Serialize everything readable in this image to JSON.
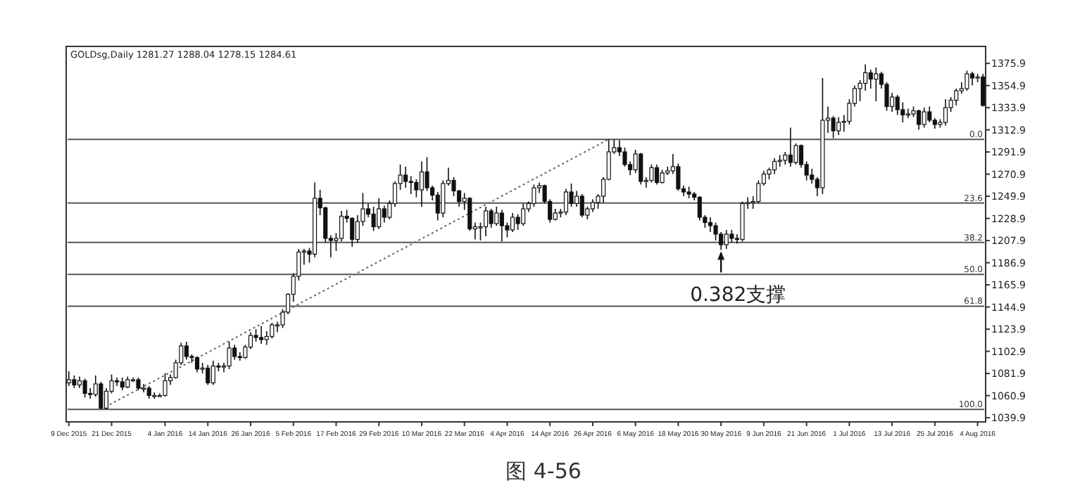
{
  "chart_data": {
    "type": "candlestick",
    "title": "GOLDsg,Daily  1281.27 1288.04 1278.15 1284.61",
    "categories": [
      "9 Dec 2015",
      null,
      null,
      null,
      null,
      null,
      null,
      null,
      "21 Dec 2015",
      null,
      null,
      null,
      null,
      null,
      null,
      null,
      null,
      null,
      "4 Jan 2016",
      null,
      null,
      null,
      null,
      null,
      null,
      null,
      "14 Jan 2016",
      null,
      null,
      null,
      null,
      null,
      null,
      null,
      "26 Jan 2016",
      null,
      null,
      null,
      null,
      null,
      null,
      null,
      "5 Feb 2016",
      null,
      null,
      null,
      null,
      null,
      null,
      null,
      "17 Feb 2016",
      null,
      null,
      null,
      null,
      null,
      null,
      null,
      "29 Feb 2016",
      null,
      null,
      null,
      null,
      null,
      null,
      null,
      "10 Mar 2016",
      null,
      null,
      null,
      null,
      null,
      null,
      null,
      "22 Mar 2016",
      null,
      null,
      null,
      null,
      null,
      null,
      null,
      "4 Apr 2016",
      null,
      null,
      null,
      null,
      null,
      null,
      null,
      "14 Apr 2016",
      null,
      null,
      null,
      null,
      null,
      null,
      null,
      "26 Apr 2016",
      null,
      null,
      null,
      null,
      null,
      null,
      null,
      "6 May 2016",
      null,
      null,
      null,
      null,
      null,
      null,
      null,
      "18 May 2016",
      null,
      null,
      null,
      null,
      null,
      null,
      null,
      "30 May 2016",
      null,
      null,
      null,
      null,
      null,
      null,
      null,
      "9 Jun 2016",
      null,
      null,
      null,
      null,
      null,
      null,
      null,
      "21 Jun 2016",
      null,
      null,
      null,
      null,
      null,
      null,
      null,
      "1 Jul 2016",
      null,
      null,
      null,
      null,
      null,
      null,
      null,
      "13 Jul 2016",
      null,
      null,
      null,
      null,
      null,
      null,
      null,
      "25 Jul 2016",
      null,
      null,
      null,
      null,
      null,
      null,
      null,
      "4 Aug 2016",
      null
    ],
    "ohlc": [
      [
        1073,
        1084,
        1070,
        1076
      ],
      [
        1076,
        1080,
        1068,
        1071
      ],
      [
        1071,
        1079,
        1068,
        1075
      ],
      [
        1075,
        1077,
        1059,
        1063
      ],
      [
        1063,
        1068,
        1058,
        1062
      ],
      [
        1062,
        1080,
        1060,
        1072
      ],
      [
        1072,
        1074,
        1048,
        1049
      ],
      [
        1049,
        1068,
        1048,
        1065
      ],
      [
        1065,
        1081,
        1063,
        1075
      ],
      [
        1075,
        1078,
        1070,
        1074
      ],
      [
        1074,
        1078,
        1066,
        1069
      ],
      [
        1069,
        1079,
        1068,
        1076
      ],
      [
        1076,
        1078,
        1074,
        1076
      ],
      [
        1076,
        1078,
        1066,
        1068
      ],
      [
        1068,
        1072,
        1064,
        1068
      ],
      [
        1068,
        1070,
        1058,
        1061
      ],
      [
        1061,
        1064,
        1058,
        1061
      ],
      [
        1061,
        1063,
        1060,
        1061
      ],
      [
        1061,
        1082,
        1060,
        1075
      ],
      [
        1075,
        1081,
        1071,
        1078
      ],
      [
        1078,
        1095,
        1077,
        1092
      ],
      [
        1092,
        1111,
        1090,
        1108
      ],
      [
        1108,
        1112,
        1095,
        1098
      ],
      [
        1098,
        1100,
        1092,
        1097
      ],
      [
        1097,
        1098,
        1083,
        1086
      ],
      [
        1086,
        1092,
        1082,
        1087
      ],
      [
        1087,
        1090,
        1071,
        1073
      ],
      [
        1073,
        1094,
        1071,
        1089
      ],
      [
        1089,
        1092,
        1084,
        1088
      ],
      [
        1088,
        1092,
        1083,
        1089
      ],
      [
        1089,
        1112,
        1086,
        1106
      ],
      [
        1106,
        1109,
        1095,
        1098
      ],
      [
        1098,
        1102,
        1094,
        1097
      ],
      [
        1097,
        1109,
        1096,
        1107
      ],
      [
        1107,
        1121,
        1105,
        1118
      ],
      [
        1118,
        1124,
        1112,
        1116
      ],
      [
        1116,
        1127,
        1110,
        1114
      ],
      [
        1114,
        1122,
        1109,
        1117
      ],
      [
        1117,
        1130,
        1115,
        1128
      ],
      [
        1128,
        1131,
        1121,
        1128
      ],
      [
        1128,
        1143,
        1125,
        1140
      ],
      [
        1140,
        1158,
        1138,
        1157
      ],
      [
        1157,
        1177,
        1150,
        1174
      ],
      [
        1174,
        1200,
        1170,
        1197
      ],
      [
        1197,
        1200,
        1185,
        1198
      ],
      [
        1198,
        1201,
        1187,
        1195
      ],
      [
        1195,
        1263,
        1192,
        1248
      ],
      [
        1248,
        1256,
        1232,
        1239
      ],
      [
        1239,
        1240,
        1206,
        1210
      ],
      [
        1210,
        1213,
        1192,
        1208
      ],
      [
        1208,
        1215,
        1198,
        1210
      ],
      [
        1210,
        1236,
        1207,
        1231
      ],
      [
        1231,
        1237,
        1225,
        1229
      ],
      [
        1229,
        1230,
        1202,
        1209
      ],
      [
        1209,
        1232,
        1206,
        1226
      ],
      [
        1226,
        1253,
        1222,
        1238
      ],
      [
        1238,
        1243,
        1230,
        1233
      ],
      [
        1233,
        1240,
        1217,
        1221
      ],
      [
        1221,
        1248,
        1219,
        1238
      ],
      [
        1238,
        1241,
        1225,
        1230
      ],
      [
        1230,
        1246,
        1228,
        1243
      ],
      [
        1243,
        1264,
        1240,
        1262
      ],
      [
        1262,
        1280,
        1256,
        1270
      ],
      [
        1270,
        1278,
        1258,
        1264
      ],
      [
        1264,
        1269,
        1252,
        1263
      ],
      [
        1263,
        1266,
        1249,
        1256
      ],
      [
        1256,
        1283,
        1240,
        1273
      ],
      [
        1273,
        1287,
        1255,
        1258
      ],
      [
        1258,
        1260,
        1246,
        1251
      ],
      [
        1251,
        1254,
        1227,
        1234
      ],
      [
        1234,
        1265,
        1230,
        1262
      ],
      [
        1262,
        1277,
        1260,
        1265
      ],
      [
        1265,
        1268,
        1250,
        1255
      ],
      [
        1255,
        1256,
        1240,
        1245
      ],
      [
        1245,
        1253,
        1237,
        1248
      ],
      [
        1248,
        1249,
        1217,
        1219
      ],
      [
        1219,
        1225,
        1209,
        1221
      ],
      [
        1221,
        1225,
        1208,
        1221
      ],
      [
        1221,
        1240,
        1212,
        1236
      ],
      [
        1236,
        1238,
        1220,
        1224
      ],
      [
        1224,
        1240,
        1222,
        1234
      ],
      [
        1234,
        1237,
        1207,
        1222
      ],
      [
        1222,
        1225,
        1211,
        1218
      ],
      [
        1218,
        1234,
        1216,
        1230
      ],
      [
        1230,
        1233,
        1218,
        1224
      ],
      [
        1224,
        1243,
        1222,
        1238
      ],
      [
        1238,
        1245,
        1235,
        1243
      ],
      [
        1243,
        1261,
        1240,
        1258
      ],
      [
        1258,
        1263,
        1253,
        1260
      ],
      [
        1260,
        1261,
        1243,
        1245
      ],
      [
        1245,
        1247,
        1225,
        1228
      ],
      [
        1228,
        1238,
        1227,
        1234
      ],
      [
        1234,
        1238,
        1230,
        1235
      ],
      [
        1235,
        1257,
        1232,
        1254
      ],
      [
        1254,
        1262,
        1240,
        1243
      ],
      [
        1243,
        1255,
        1240,
        1250
      ],
      [
        1250,
        1252,
        1230,
        1232
      ],
      [
        1232,
        1240,
        1228,
        1238
      ],
      [
        1238,
        1247,
        1235,
        1244
      ],
      [
        1244,
        1252,
        1238,
        1250
      ],
      [
        1250,
        1268,
        1244,
        1266
      ],
      [
        1266,
        1304,
        1265,
        1292
      ],
      [
        1292,
        1304,
        1290,
        1296
      ],
      [
        1296,
        1303,
        1288,
        1292
      ],
      [
        1292,
        1296,
        1278,
        1280
      ],
      [
        1280,
        1283,
        1270,
        1275
      ],
      [
        1275,
        1294,
        1272,
        1290
      ],
      [
        1290,
        1291,
        1261,
        1264
      ],
      [
        1264,
        1268,
        1258,
        1265
      ],
      [
        1265,
        1280,
        1263,
        1277
      ],
      [
        1277,
        1280,
        1261,
        1263
      ],
      [
        1263,
        1275,
        1262,
        1272
      ],
      [
        1272,
        1278,
        1270,
        1274
      ],
      [
        1274,
        1290,
        1271,
        1278
      ],
      [
        1278,
        1281,
        1255,
        1257
      ],
      [
        1257,
        1260,
        1250,
        1254
      ],
      [
        1254,
        1259,
        1248,
        1252
      ],
      [
        1252,
        1254,
        1246,
        1249
      ],
      [
        1249,
        1250,
        1227,
        1230
      ],
      [
        1230,
        1232,
        1220,
        1225
      ],
      [
        1225,
        1230,
        1216,
        1222
      ],
      [
        1222,
        1225,
        1208,
        1214
      ],
      [
        1214,
        1216,
        1199,
        1204
      ],
      [
        1204,
        1218,
        1200,
        1214
      ],
      [
        1214,
        1218,
        1206,
        1210
      ],
      [
        1210,
        1214,
        1205,
        1209
      ],
      [
        1209,
        1245,
        1207,
        1243
      ],
      [
        1243,
        1249,
        1238,
        1244
      ],
      [
        1244,
        1250,
        1238,
        1245
      ],
      [
        1245,
        1265,
        1243,
        1262
      ],
      [
        1262,
        1274,
        1260,
        1271
      ],
      [
        1271,
        1277,
        1266,
        1275
      ],
      [
        1275,
        1286,
        1271,
        1283
      ],
      [
        1283,
        1289,
        1278,
        1284
      ],
      [
        1284,
        1292,
        1280,
        1289
      ],
      [
        1289,
        1315,
        1278,
        1282
      ],
      [
        1282,
        1300,
        1280,
        1298
      ],
      [
        1298,
        1299,
        1277,
        1280
      ],
      [
        1280,
        1283,
        1265,
        1270
      ],
      [
        1270,
        1276,
        1262,
        1266
      ],
      [
        1266,
        1268,
        1250,
        1258
      ],
      [
        1258,
        1362,
        1252,
        1322
      ],
      [
        1322,
        1335,
        1310,
        1324
      ],
      [
        1324,
        1326,
        1305,
        1312
      ],
      [
        1312,
        1325,
        1308,
        1320
      ],
      [
        1320,
        1327,
        1311,
        1321
      ],
      [
        1321,
        1342,
        1318,
        1338
      ],
      [
        1338,
        1355,
        1335,
        1352
      ],
      [
        1352,
        1360,
        1340,
        1357
      ],
      [
        1357,
        1375,
        1350,
        1367
      ],
      [
        1367,
        1370,
        1352,
        1361
      ],
      [
        1361,
        1372,
        1340,
        1366
      ],
      [
        1366,
        1368,
        1352,
        1356
      ],
      [
        1356,
        1358,
        1331,
        1335
      ],
      [
        1335,
        1348,
        1330,
        1344
      ],
      [
        1344,
        1346,
        1327,
        1332
      ],
      [
        1332,
        1339,
        1320,
        1327
      ],
      [
        1327,
        1333,
        1324,
        1328
      ],
      [
        1328,
        1335,
        1325,
        1331
      ],
      [
        1331,
        1332,
        1313,
        1318
      ],
      [
        1318,
        1334,
        1315,
        1330
      ],
      [
        1330,
        1335,
        1320,
        1322
      ],
      [
        1322,
        1324,
        1314,
        1318
      ],
      [
        1318,
        1323,
        1315,
        1320
      ],
      [
        1320,
        1342,
        1317,
        1334
      ],
      [
        1334,
        1344,
        1330,
        1341
      ],
      [
        1341,
        1352,
        1336,
        1350
      ],
      [
        1350,
        1358,
        1347,
        1352
      ],
      [
        1352,
        1369,
        1350,
        1366
      ],
      [
        1366,
        1368,
        1355,
        1362
      ],
      [
        1362,
        1366,
        1358,
        1363
      ],
      [
        1363,
        1366,
        1335,
        1336
      ]
    ],
    "series": [
      {
        "type": "line",
        "values": [
          null,
          null,
          null,
          null,
          null,
          null,
          1048,
          null,
          null,
          null,
          null,
          null,
          null,
          null,
          null,
          null,
          null,
          null,
          null,
          null,
          null,
          null,
          null,
          null,
          null,
          null,
          null,
          null,
          null,
          null,
          null,
          null,
          null,
          null,
          null,
          null,
          null,
          null,
          null,
          null,
          null,
          null,
          null,
          null,
          null,
          null,
          null,
          null,
          null,
          null,
          null,
          null,
          null,
          null,
          null,
          null,
          null,
          null,
          null,
          null,
          null,
          null,
          null,
          null,
          null,
          null,
          null,
          null,
          null,
          null,
          null,
          null,
          null,
          null,
          null,
          null,
          null,
          null,
          null,
          null,
          null,
          null,
          null,
          null,
          null,
          null,
          null,
          null,
          null,
          null,
          null,
          null,
          null,
          null,
          null,
          null,
          null,
          null,
          null,
          null,
          null,
          1304,
          null,
          null,
          null,
          null,
          null,
          null,
          null,
          null,
          null,
          null,
          null,
          null,
          null,
          null,
          null,
          null,
          null,
          null,
          null,
          null,
          null,
          null,
          null,
          null,
          null,
          null,
          null,
          null,
          null,
          null,
          null,
          null,
          null,
          null,
          null,
          null,
          null,
          null,
          null,
          null,
          null,
          null,
          null,
          null,
          null,
          null,
          null,
          null,
          null,
          null,
          null,
          null,
          null,
          null,
          null,
          null,
          null,
          null,
          null,
          null,
          null,
          null,
          null,
          null,
          null,
          null,
          null,
          null,
          null,
          null
        ],
        "color": "#666666",
        "line_style": "dotted"
      }
    ],
    "ylim": [
      1036,
      1392
    ],
    "yticks": [
      1375.9,
      1354.9,
      1333.9,
      1312.9,
      1291.9,
      1270.9,
      1249.9,
      1228.9,
      1207.9,
      1186.9,
      1165.9,
      1144.9,
      1123.9,
      1102.9,
      1081.9,
      1060.9,
      1039.9
    ],
    "ref_lines": [
      {
        "axis": "y",
        "value": 1303.9,
        "color": "#555555"
      },
      {
        "axis": "y",
        "value": 1243.5,
        "color": "#555555"
      },
      {
        "axis": "y",
        "value": 1206.1,
        "color": "#555555"
      },
      {
        "axis": "y",
        "value": 1175.9,
        "color": "#555555"
      },
      {
        "axis": "y",
        "value": 1145.7,
        "color": "#555555"
      },
      {
        "axis": "y",
        "value": 1047.9,
        "color": "#555555"
      }
    ],
    "annotations": [
      {
        "text": "0.0",
        "y": 1303.9
      },
      {
        "text": "23.6",
        "y": 1243.5
      },
      {
        "text": "38.2",
        "y": 1206.1
      },
      {
        "text": "50.0",
        "y": 1175.9
      },
      {
        "text": "61.8",
        "y": 1145.7
      },
      {
        "text": "100.0",
        "y": 1047.9
      },
      {
        "text": "0.382支撑",
        "x": "30 May 2016",
        "y": 1199
      },
      "图 4-56"
    ]
  }
}
